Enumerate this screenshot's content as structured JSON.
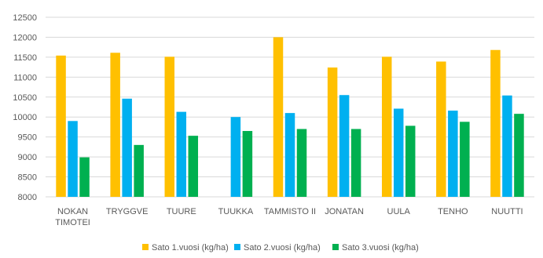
{
  "chart_data": {
    "type": "bar",
    "categories": [
      [
        "NOKAN",
        "TIMOTEI"
      ],
      [
        "TRYGGVE"
      ],
      [
        "TUURE"
      ],
      [
        "TUUKKA"
      ],
      [
        "TAMMISTO II"
      ],
      [
        "JONATAN"
      ],
      [
        "UULA"
      ],
      [
        "TENHO"
      ],
      [
        "NUUTTI"
      ]
    ],
    "series": [
      {
        "name": "Sato 1.vuosi (kg/ha)",
        "color": "#FFC000",
        "values": [
          11540,
          11610,
          11510,
          null,
          12000,
          11240,
          11510,
          11390,
          11680
        ]
      },
      {
        "name": "Sato 2.vuosi (kg/ha)",
        "color": "#00B0F0",
        "values": [
          9900,
          10460,
          10130,
          10000,
          10100,
          10550,
          10210,
          10160,
          10540
        ]
      },
      {
        "name": "Sato 3.vuosi (kg/ha)",
        "color": "#00B050",
        "values": [
          8990,
          9300,
          9530,
          9650,
          9700,
          9700,
          9780,
          9880,
          10080
        ]
      }
    ],
    "ylim": [
      8000,
      12500
    ],
    "yticks": [
      "12500",
      "12000",
      "11500",
      "11000",
      "10500",
      "10000",
      "9500",
      "9000",
      "8500",
      "8000"
    ],
    "grid": true,
    "legend_position": "bottom",
    "gridline_color": "#D9D9D9",
    "text_color": "#595959"
  }
}
